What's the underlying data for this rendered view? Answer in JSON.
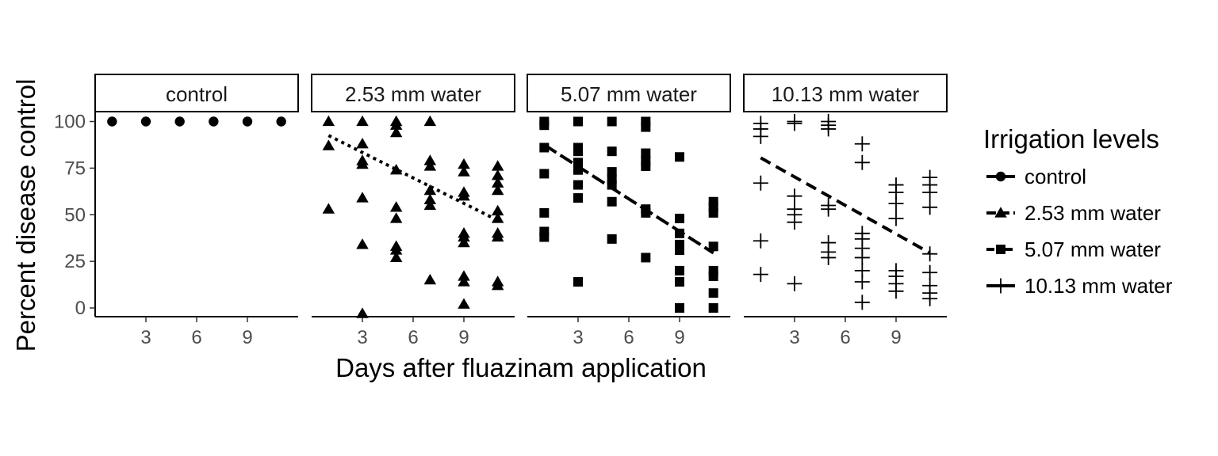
{
  "chart_data": {
    "type": "scatter",
    "xlabel": "Days after fluazinam application",
    "ylabel": "Percent disease control",
    "xlim": [
      0,
      12
    ],
    "ylim": [
      -4,
      105
    ],
    "x_ticks": [
      3,
      6,
      9
    ],
    "y_ticks": [
      0,
      25,
      50,
      75,
      100
    ],
    "legend": {
      "title": "Irrigation levels",
      "position": "right",
      "items": [
        "control",
        "2.53 mm water",
        "5.07 mm water",
        "10.13 mm water"
      ]
    },
    "panels": [
      {
        "label": "control",
        "shape": "circle",
        "trend": null,
        "points": [
          [
            1,
            100
          ],
          [
            3,
            100
          ],
          [
            5,
            100
          ],
          [
            7,
            100
          ],
          [
            9,
            100
          ],
          [
            11,
            100
          ]
        ]
      },
      {
        "label": "2.53 mm water",
        "shape": "triangle",
        "trend": {
          "dash": "dotted",
          "x": [
            1,
            11
          ],
          "y": [
            92.5,
            47
          ]
        },
        "points": [
          [
            1,
            100
          ],
          [
            1,
            87
          ],
          [
            1,
            53
          ],
          [
            3,
            100
          ],
          [
            3,
            88
          ],
          [
            3,
            79
          ],
          [
            3,
            77
          ],
          [
            3,
            59
          ],
          [
            3,
            34
          ],
          [
            3,
            -3
          ],
          [
            5,
            100
          ],
          [
            5,
            98
          ],
          [
            5,
            94
          ],
          [
            5,
            74
          ],
          [
            5,
            54
          ],
          [
            5,
            48
          ],
          [
            5,
            33
          ],
          [
            5,
            31
          ],
          [
            5,
            27
          ],
          [
            7,
            100
          ],
          [
            7,
            79
          ],
          [
            7,
            76
          ],
          [
            7,
            63
          ],
          [
            7,
            58
          ],
          [
            7,
            55
          ],
          [
            7,
            15
          ],
          [
            9,
            77
          ],
          [
            9,
            73
          ],
          [
            9,
            62
          ],
          [
            9,
            60
          ],
          [
            9,
            40
          ],
          [
            9,
            38
          ],
          [
            9,
            35
          ],
          [
            9,
            17
          ],
          [
            9,
            14
          ],
          [
            9,
            2
          ],
          [
            11,
            76
          ],
          [
            11,
            71
          ],
          [
            11,
            67
          ],
          [
            11,
            63
          ],
          [
            11,
            52
          ],
          [
            11,
            48
          ],
          [
            11,
            40
          ],
          [
            11,
            38
          ],
          [
            11,
            14
          ],
          [
            11,
            12
          ]
        ]
      },
      {
        "label": "5.07 mm water",
        "shape": "square",
        "trend": {
          "dash": "longdash",
          "x": [
            1,
            11
          ],
          "y": [
            87.5,
            29.5
          ]
        },
        "points": [
          [
            1,
            100
          ],
          [
            1,
            98
          ],
          [
            1,
            86
          ],
          [
            1,
            72
          ],
          [
            1,
            51
          ],
          [
            1,
            41
          ],
          [
            1,
            38
          ],
          [
            3,
            100
          ],
          [
            3,
            86
          ],
          [
            3,
            84
          ],
          [
            3,
            78
          ],
          [
            3,
            74
          ],
          [
            3,
            66
          ],
          [
            3,
            59
          ],
          [
            3,
            14
          ],
          [
            5,
            100
          ],
          [
            5,
            84
          ],
          [
            5,
            73
          ],
          [
            5,
            69
          ],
          [
            5,
            66
          ],
          [
            5,
            57
          ],
          [
            5,
            37
          ],
          [
            7,
            100
          ],
          [
            7,
            97
          ],
          [
            7,
            83
          ],
          [
            7,
            79
          ],
          [
            7,
            76
          ],
          [
            7,
            53
          ],
          [
            7,
            51
          ],
          [
            7,
            27
          ],
          [
            9,
            81
          ],
          [
            9,
            48
          ],
          [
            9,
            40
          ],
          [
            9,
            34
          ],
          [
            9,
            31
          ],
          [
            9,
            20
          ],
          [
            9,
            14
          ],
          [
            9,
            0
          ],
          [
            11,
            57
          ],
          [
            11,
            54
          ],
          [
            11,
            51
          ],
          [
            11,
            33
          ],
          [
            11,
            20
          ],
          [
            11,
            17
          ],
          [
            11,
            8
          ],
          [
            11,
            0
          ]
        ]
      },
      {
        "label": "10.13 mm water",
        "shape": "plus",
        "trend": {
          "dash": "dashed",
          "x": [
            1,
            11
          ],
          "y": [
            80.5,
            29.5
          ]
        },
        "points": [
          [
            1,
            99
          ],
          [
            1,
            96
          ],
          [
            1,
            92
          ],
          [
            1,
            67
          ],
          [
            1,
            36
          ],
          [
            1,
            18
          ],
          [
            3,
            100
          ],
          [
            3,
            99
          ],
          [
            3,
            60
          ],
          [
            3,
            53
          ],
          [
            3,
            50
          ],
          [
            3,
            46
          ],
          [
            3,
            13
          ],
          [
            5,
            100
          ],
          [
            5,
            98
          ],
          [
            5,
            96
          ],
          [
            5,
            55
          ],
          [
            5,
            53
          ],
          [
            5,
            35
          ],
          [
            5,
            30
          ],
          [
            5,
            27
          ],
          [
            7,
            88
          ],
          [
            7,
            78
          ],
          [
            7,
            40
          ],
          [
            7,
            37
          ],
          [
            7,
            32
          ],
          [
            7,
            27
          ],
          [
            7,
            20
          ],
          [
            7,
            14
          ],
          [
            7,
            3
          ],
          [
            9,
            66
          ],
          [
            9,
            62
          ],
          [
            9,
            56
          ],
          [
            9,
            48
          ],
          [
            9,
            20
          ],
          [
            9,
            17
          ],
          [
            9,
            13
          ],
          [
            9,
            9
          ],
          [
            11,
            70
          ],
          [
            11,
            66
          ],
          [
            11,
            62
          ],
          [
            11,
            54
          ],
          [
            11,
            29
          ],
          [
            11,
            19
          ],
          [
            11,
            12
          ],
          [
            11,
            8
          ],
          [
            11,
            5
          ]
        ]
      }
    ]
  }
}
